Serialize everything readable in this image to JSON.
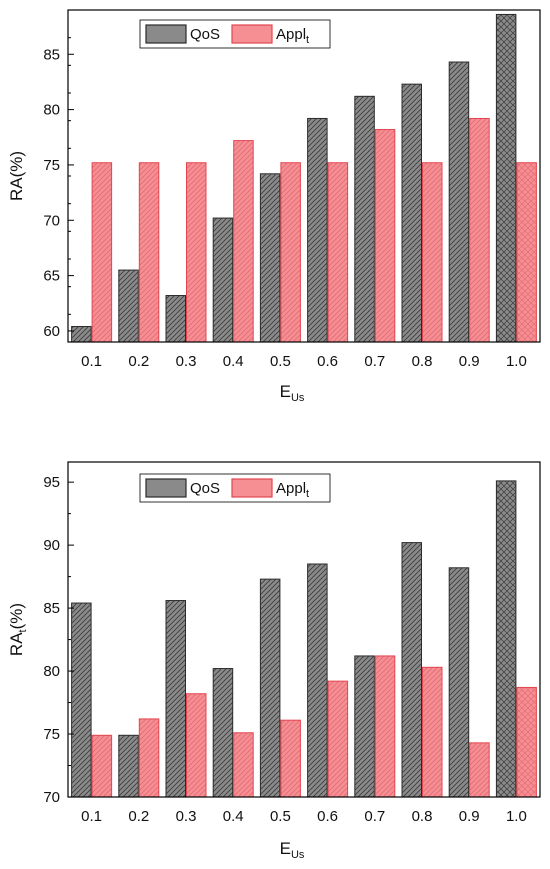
{
  "colors": {
    "qos_fill": "#8a8a8a",
    "qos_stroke": "#2b2b2b",
    "appl_fill": "#f58f94",
    "appl_stroke": "#e3454f"
  },
  "chart_data": [
    {
      "type": "bar",
      "categories": [
        "0.1",
        "0.2",
        "0.3",
        "0.4",
        "0.5",
        "0.6",
        "0.7",
        "0.8",
        "0.9",
        "1.0"
      ],
      "series": [
        {
          "name": "QoS",
          "values": [
            60.4,
            65.5,
            63.2,
            70.2,
            74.2,
            79.2,
            81.2,
            82.3,
            84.3,
            88.6
          ]
        },
        {
          "name": "Appl",
          "name_sub": "t",
          "values": [
            75.2,
            75.2,
            75.2,
            77.2,
            75.2,
            75.2,
            78.2,
            75.2,
            79.2,
            75.2
          ]
        }
      ],
      "xlabel": "E",
      "xlabel_sub": "Us",
      "ylabel": "RA(%)",
      "ylim": [
        59,
        89
      ],
      "yticks": [
        60,
        65,
        70,
        75,
        80,
        85
      ],
      "legend": "top-left inside",
      "grid": false
    },
    {
      "type": "bar",
      "categories": [
        "0.1",
        "0.2",
        "0.3",
        "0.4",
        "0.5",
        "0.6",
        "0.7",
        "0.8",
        "0.9",
        "1.0"
      ],
      "series": [
        {
          "name": "QoS",
          "values": [
            85.4,
            74.9,
            85.6,
            80.2,
            87.3,
            88.5,
            81.2,
            90.2,
            88.2,
            95.1
          ]
        },
        {
          "name": "Appl",
          "name_sub": "t",
          "values": [
            74.9,
            76.2,
            78.2,
            75.1,
            76.1,
            79.2,
            81.2,
            80.3,
            74.3,
            78.7
          ]
        }
      ],
      "xlabel": "E",
      "xlabel_sub": "Us",
      "ylabel": "RA",
      "ylabel_sub": "t",
      "ylabel_suffix": "(%)",
      "ylim": [
        70,
        96.6
      ],
      "yticks": [
        70,
        75,
        80,
        85,
        90,
        95
      ],
      "legend": "top-left inside",
      "grid": false
    }
  ]
}
